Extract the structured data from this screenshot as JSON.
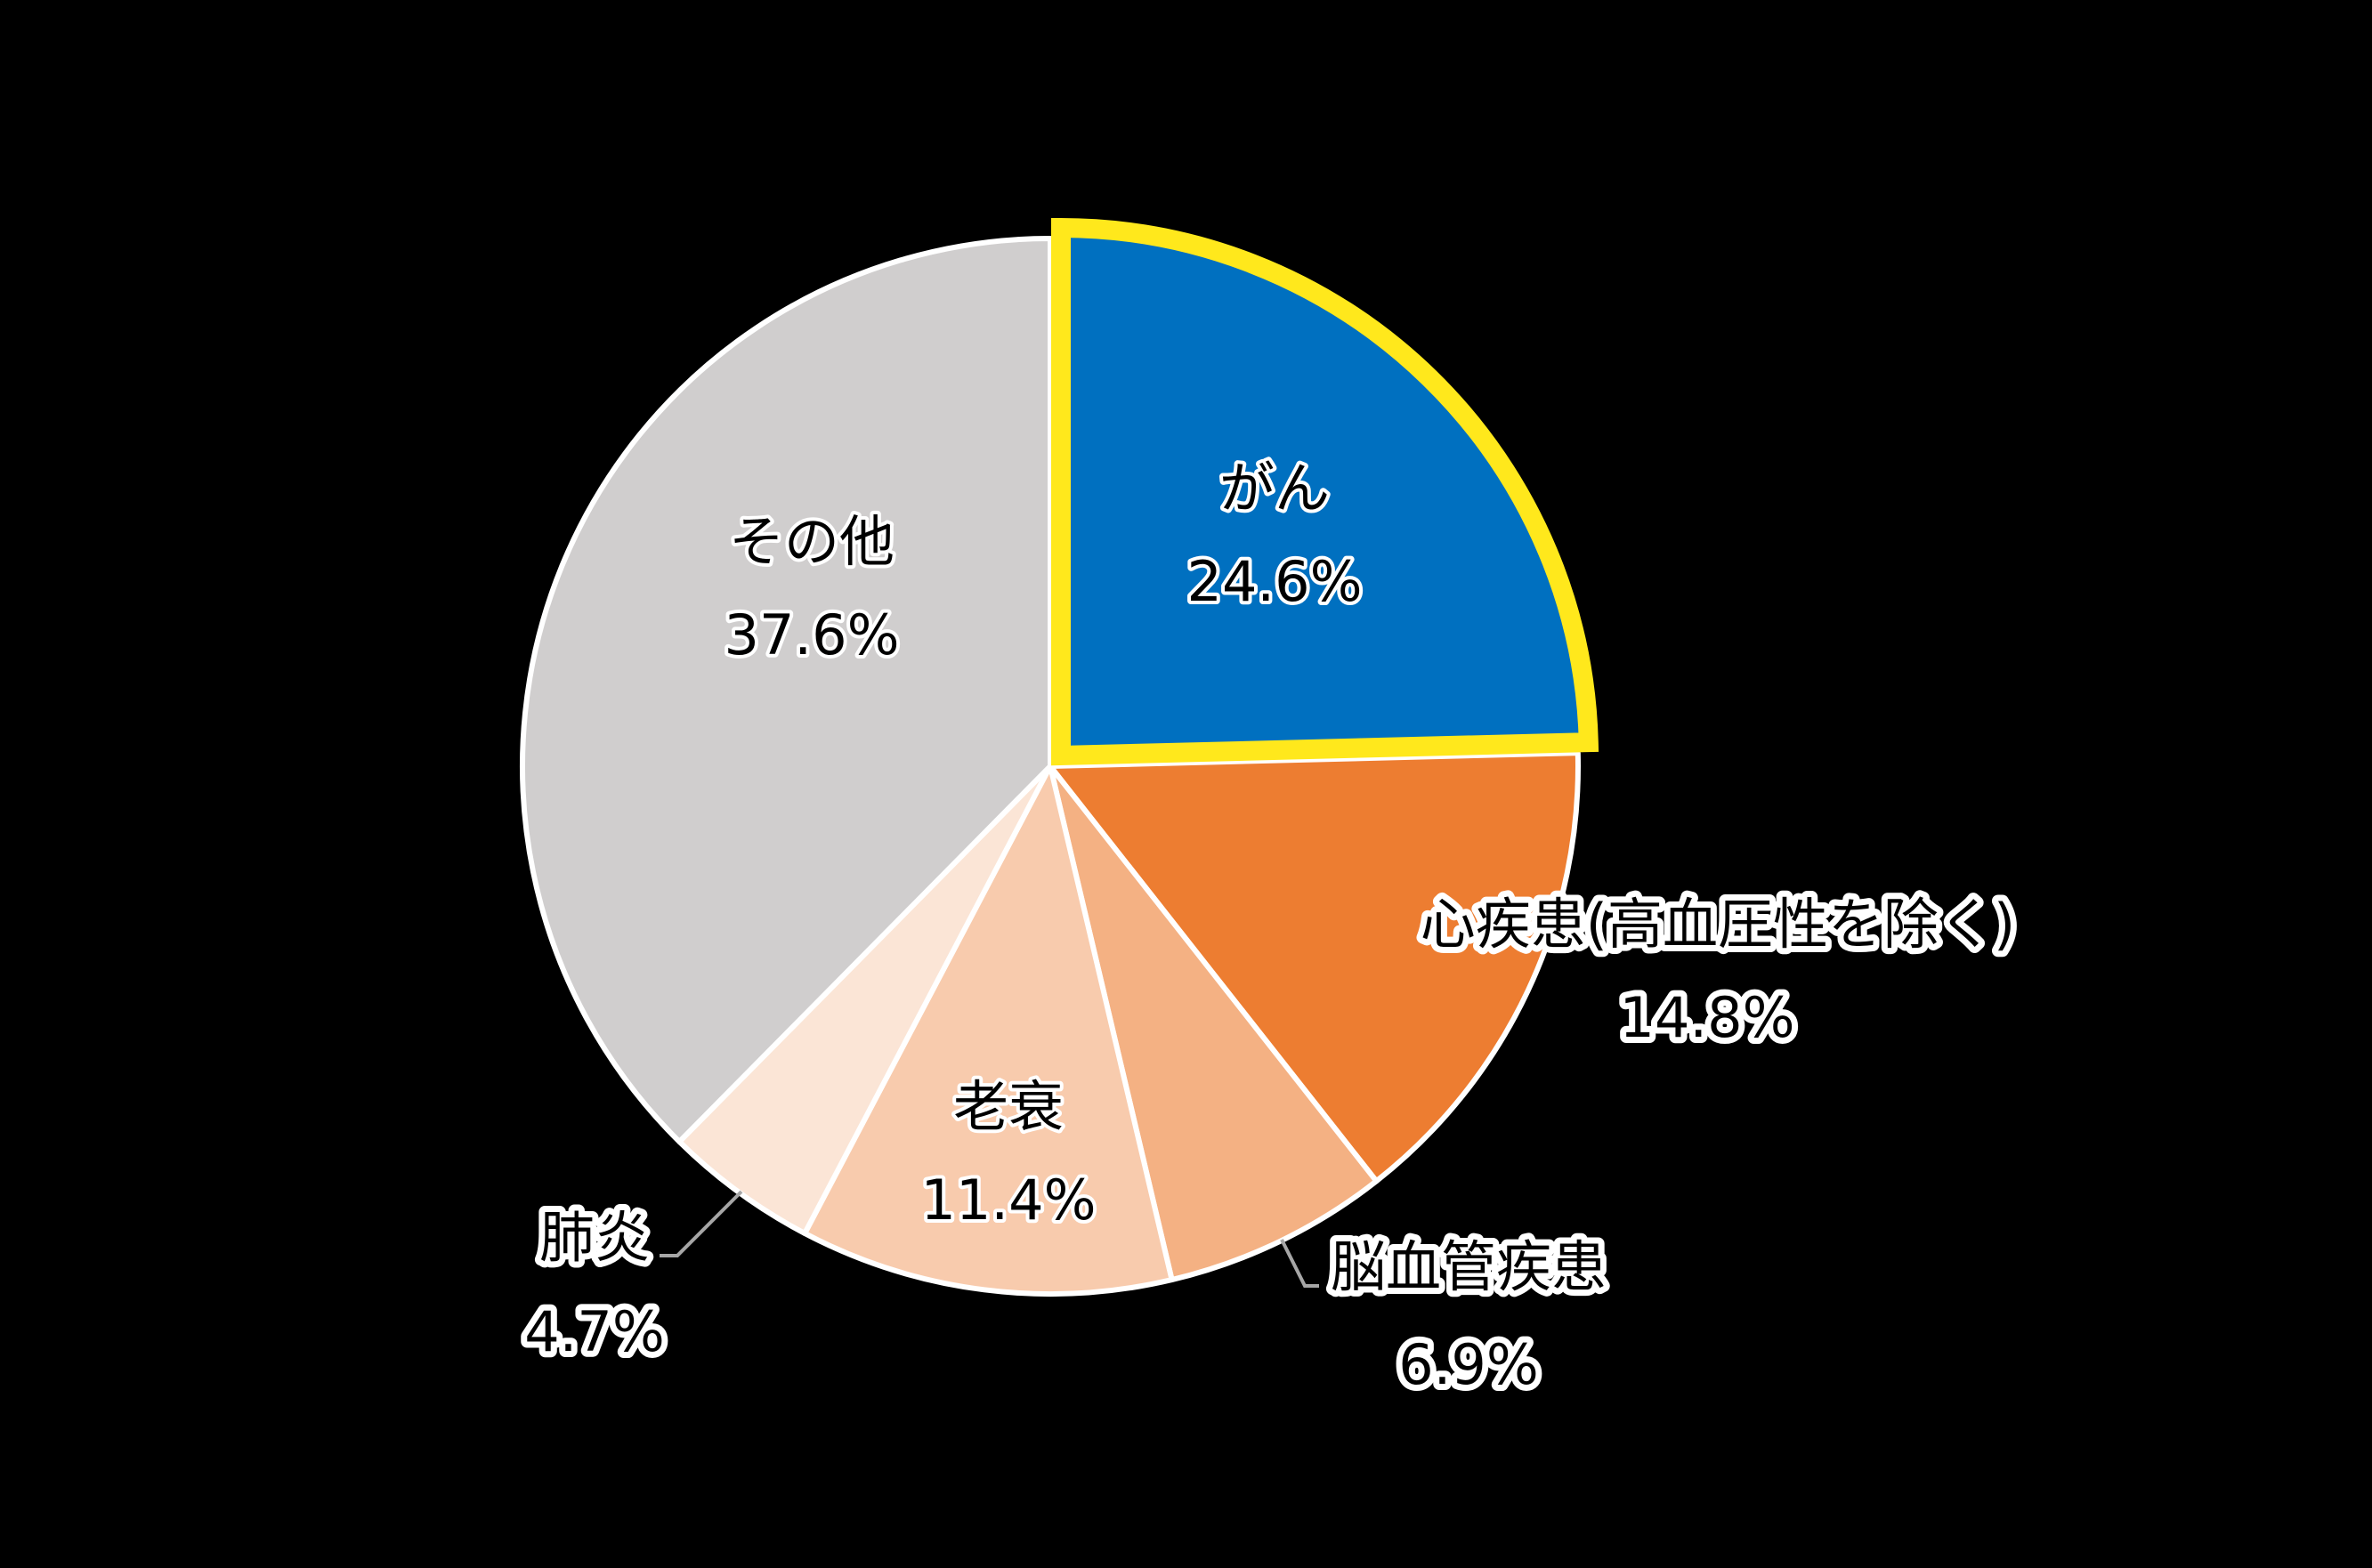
{
  "chart_data": {
    "type": "pie",
    "title": "",
    "start_angle_deg": 0,
    "direction": "clockwise",
    "highlighted": "がん",
    "highlight_color": "#FFE81C",
    "slices": [
      {
        "label": "がん",
        "value": 24.6,
        "display": "24.6%",
        "color": "#0070C0",
        "exploded": true
      },
      {
        "label": "心疾患(高血圧性を除く)",
        "value": 14.8,
        "display": "14.8%",
        "color": "#ED7D31"
      },
      {
        "label": "脳血管疾患",
        "value": 6.9,
        "display": "6.9%",
        "color": "#F4B183"
      },
      {
        "label": "老衰",
        "value": 11.4,
        "display": "11.4%",
        "color": "#F8CBAD"
      },
      {
        "label": "肺炎",
        "value": 4.7,
        "display": "4.7%",
        "color": "#FBE5D6"
      },
      {
        "label": "その他",
        "value": 37.6,
        "display": "37.6%",
        "color": "#D0CECE"
      }
    ]
  },
  "labels": {
    "gan": {
      "name": "がん",
      "pct": "24.6%"
    },
    "heart": {
      "name": "心疾患(高血圧性を除く)",
      "pct": "14.8%"
    },
    "stroke": {
      "name": "脳血管疾患",
      "pct": "6.9%"
    },
    "senility": {
      "name": "老衰",
      "pct": "11.4%"
    },
    "pneumonia": {
      "name": "肺炎",
      "pct": "4.7%"
    },
    "other": {
      "name": "その他",
      "pct": "37.6%"
    }
  }
}
